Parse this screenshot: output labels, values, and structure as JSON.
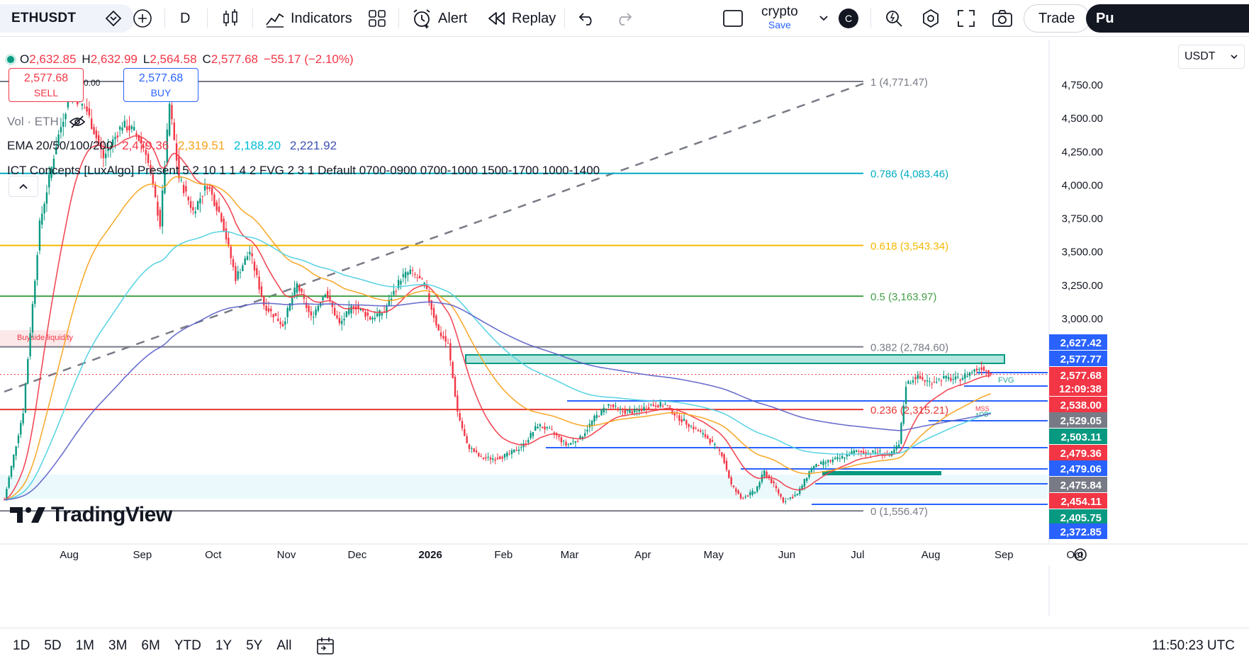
{
  "toolbar": {
    "symbol": "ETHUSDT",
    "interval": "D",
    "indicators_label": "Indicators",
    "alert_label": "Alert",
    "replay_label": "Replay",
    "layout_name": "crypto",
    "layout_status": "Save",
    "avatar_letter": "C",
    "trade_label": "Trade",
    "publish_label": "Pu"
  },
  "legend": {
    "ohlc": {
      "o_label": "O",
      "o_value": "2,632.85",
      "h_label": "H",
      "h_value": "2,632.99",
      "l_label": "L",
      "l_value": "2,564.58",
      "c_label": "C",
      "c_value": "2,577.68",
      "change": "−55.17 (−2.10%)"
    },
    "sell": {
      "price": "2,577.68",
      "label": "SELL"
    },
    "buy": {
      "price": "2,577.68",
      "label": "BUY"
    },
    "vol_label": "Vol · ETH",
    "ema": {
      "label": "EMA 20/50/100/200",
      "v20": "2,479.36",
      "v50": "2,319.51",
      "v100": "2,188.20",
      "v200": "2,221.92"
    },
    "ict": "ICT Concepts [LuxAlgo] Present 5 2 10 1 1 4 2 FVG 2 3 1 Default 0700-0900 0700-1000 1500-1700 1000-1400",
    "fib_zero_marker": "0.00",
    "buyside_liquidity": "Buyside liquidity",
    "fvg_label": "FVG",
    "mss_label": "MSS",
    "ob_label": "+OB"
  },
  "currency": "USDT",
  "watermark": "TradingView",
  "timeframes": [
    "1D",
    "5D",
    "1M",
    "3M",
    "6M",
    "YTD",
    "1Y",
    "5Y",
    "All"
  ],
  "clock": "11:50:23 UTC",
  "colors": {
    "up": "#089981",
    "down": "#f23645",
    "ema20": "#f23645",
    "ema50": "#f7a21b",
    "ema100": "#4dd0e1",
    "ema200": "#5b5fc7",
    "accent": "#2962ff"
  },
  "chart_data": {
    "type": "candlestick",
    "symbol": "ETHUSDT",
    "interval": "1D",
    "y_axis": {
      "ticks": [
        "4,750.00",
        "4,500.00",
        "4,250.00",
        "4,000.00",
        "3,750.00",
        "3,500.00",
        "3,250.00",
        "3,000.00"
      ],
      "tick_values": [
        4750,
        4500,
        4250,
        4000,
        3750,
        3500,
        3250,
        3000
      ],
      "range": [
        1400,
        4900
      ]
    },
    "x_axis": {
      "labels": [
        "Aug",
        "Sep",
        "Oct",
        "Nov",
        "Dec",
        "2026",
        "Feb",
        "Mar",
        "Apr",
        "May",
        "Jun",
        "Jul",
        "Aug",
        "Sep",
        "Oct"
      ],
      "label_index": [
        8,
        39,
        69,
        100,
        130,
        161,
        192,
        220,
        251,
        281,
        312,
        342,
        373,
        404,
        434
      ]
    },
    "fib_levels": [
      {
        "ratio": "1",
        "price": 4771.47,
        "label": "1 (4,771.47)",
        "color": "#787b86"
      },
      {
        "ratio": "0.786",
        "price": 4083.46,
        "label": "0.786 (4,083.46)",
        "color": "#00acc1"
      },
      {
        "ratio": "0.618",
        "price": 3543.34,
        "label": "0.618 (3,543.34)",
        "color": "#f5b800"
      },
      {
        "ratio": "0.5",
        "price": 3163.97,
        "label": "0.5 (3,163.97)",
        "color": "#43a047"
      },
      {
        "ratio": "0.382",
        "price": 2784.6,
        "label": "0.382 (2,784.60)",
        "color": "#787b86"
      },
      {
        "ratio": "0.236",
        "price": 2315.21,
        "label": "0.236 (2,315.21)",
        "color": "#e53935"
      },
      {
        "ratio": "0",
        "price": 1556.47,
        "label": "0 (1,556.47)",
        "color": "#787b86"
      }
    ],
    "price_badges": [
      {
        "text": "2,627.42",
        "bg": "#2962ff"
      },
      {
        "text": "2,577.77",
        "bg": "#2962ff"
      },
      {
        "text": "2,577.68",
        "bg": "#f23645"
      },
      {
        "text": "12:09:38",
        "bg": "#f23645"
      },
      {
        "text": "2,538.00",
        "bg": "#f23645"
      },
      {
        "text": "2,529.05",
        "bg": "#787b86"
      },
      {
        "text": "2,503.11",
        "bg": "#089981"
      },
      {
        "text": "2,479.36",
        "bg": "#f23645"
      },
      {
        "text": "2,479.06",
        "bg": "#2962ff"
      },
      {
        "text": "2,475.84",
        "bg": "#787b86"
      },
      {
        "text": "2,454.11",
        "bg": "#f23645"
      },
      {
        "text": "2,405.75",
        "bg": "#089981"
      },
      {
        "text": "2,372.85",
        "bg": "#2962ff"
      }
    ],
    "series": [
      {
        "name": "EMA 20",
        "value": 2479.36,
        "color": "#f23645"
      },
      {
        "name": "EMA 50",
        "value": 2319.51,
        "color": "#f7a21b"
      },
      {
        "name": "EMA 100",
        "value": 2188.2,
        "color": "#4dd0e1"
      },
      {
        "name": "EMA 200",
        "value": 2221.92,
        "color": "#5b5fc7"
      }
    ],
    "price_path": [
      [
        0,
        1640
      ],
      [
        8,
        2300
      ],
      [
        15,
        3700
      ],
      [
        22,
        4300
      ],
      [
        28,
        4700
      ],
      [
        35,
        4550
      ],
      [
        42,
        4200
      ],
      [
        50,
        4450
      ],
      [
        55,
        4400
      ],
      [
        60,
        4250
      ],
      [
        66,
        3700
      ],
      [
        70,
        4600
      ],
      [
        74,
        4050
      ],
      [
        80,
        3800
      ],
      [
        86,
        4000
      ],
      [
        92,
        3750
      ],
      [
        98,
        3300
      ],
      [
        104,
        3500
      ],
      [
        110,
        3100
      ],
      [
        118,
        2950
      ],
      [
        124,
        3250
      ],
      [
        130,
        3000
      ],
      [
        136,
        3200
      ],
      [
        142,
        2950
      ],
      [
        148,
        3100
      ],
      [
        155,
        3000
      ],
      [
        161,
        3050
      ],
      [
        168,
        3300
      ],
      [
        172,
        3350
      ],
      [
        178,
        3250
      ],
      [
        184,
        2900
      ],
      [
        188,
        2800
      ],
      [
        192,
        2300
      ],
      [
        196,
        2050
      ],
      [
        202,
        1950
      ],
      [
        208,
        1950
      ],
      [
        214,
        1980
      ],
      [
        220,
        2050
      ],
      [
        226,
        2200
      ],
      [
        232,
        2150
      ],
      [
        238,
        2050
      ],
      [
        244,
        2100
      ],
      [
        250,
        2250
      ],
      [
        256,
        2350
      ],
      [
        262,
        2300
      ],
      [
        268,
        2300
      ],
      [
        274,
        2350
      ],
      [
        280,
        2350
      ],
      [
        286,
        2250
      ],
      [
        292,
        2180
      ],
      [
        298,
        2100
      ],
      [
        304,
        1980
      ],
      [
        308,
        1750
      ],
      [
        312,
        1650
      ],
      [
        318,
        1700
      ],
      [
        322,
        1850
      ],
      [
        326,
        1750
      ],
      [
        330,
        1630
      ],
      [
        336,
        1680
      ],
      [
        342,
        1880
      ],
      [
        348,
        1920
      ],
      [
        354,
        1950
      ],
      [
        360,
        2000
      ],
      [
        366,
        1990
      ],
      [
        370,
        2000
      ],
      [
        375,
        1970
      ],
      [
        379,
        2050
      ],
      [
        382,
        2500
      ],
      [
        386,
        2560
      ],
      [
        392,
        2520
      ],
      [
        398,
        2550
      ],
      [
        404,
        2540
      ],
      [
        410,
        2600
      ],
      [
        414,
        2632
      ],
      [
        418,
        2577
      ]
    ],
    "last_price": 2577.68
  }
}
